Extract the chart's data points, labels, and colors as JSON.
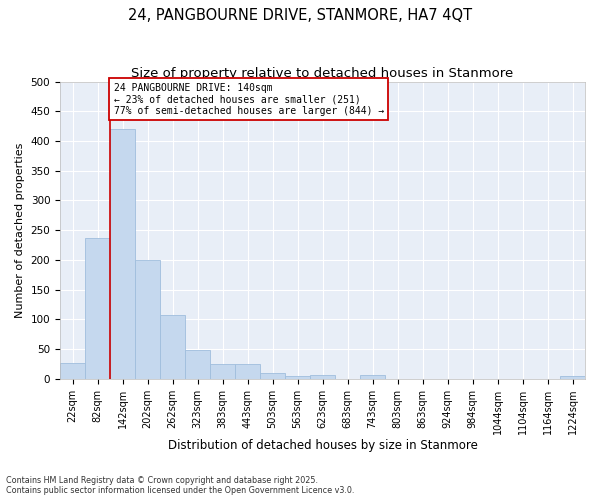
{
  "title": "24, PANGBOURNE DRIVE, STANMORE, HA7 4QT",
  "subtitle": "Size of property relative to detached houses in Stanmore",
  "xlabel": "Distribution of detached houses by size in Stanmore",
  "ylabel": "Number of detached properties",
  "bar_labels": [
    "22sqm",
    "82sqm",
    "142sqm",
    "202sqm",
    "262sqm",
    "323sqm",
    "383sqm",
    "443sqm",
    "503sqm",
    "563sqm",
    "623sqm",
    "683sqm",
    "743sqm",
    "803sqm",
    "863sqm",
    "924sqm",
    "984sqm",
    "1044sqm",
    "1104sqm",
    "1164sqm",
    "1224sqm"
  ],
  "bar_values": [
    27,
    237,
    420,
    200,
    107,
    49,
    25,
    25,
    10,
    4,
    7,
    0,
    7,
    0,
    0,
    0,
    0,
    0,
    0,
    0,
    4
  ],
  "bar_color": "#c5d8ee",
  "bar_edge_color": "#a0bedd",
  "annotation_line1": "24 PANGBOURNE DRIVE: 140sqm",
  "annotation_line2": "← 23% of detached houses are smaller (251)",
  "annotation_line3": "77% of semi-detached houses are larger (844) →",
  "vline_color": "#cc0000",
  "box_edge_color": "#cc0000",
  "box_face_color": "#ffffff",
  "fig_bg_color": "#ffffff",
  "plot_bg_color": "#e8eef7",
  "grid_color": "#ffffff",
  "ylim_max": 500,
  "yticks": [
    0,
    50,
    100,
    150,
    200,
    250,
    300,
    350,
    400,
    450,
    500
  ],
  "footer1": "Contains HM Land Registry data © Crown copyright and database right 2025.",
  "footer2": "Contains public sector information licensed under the Open Government Licence v3.0."
}
